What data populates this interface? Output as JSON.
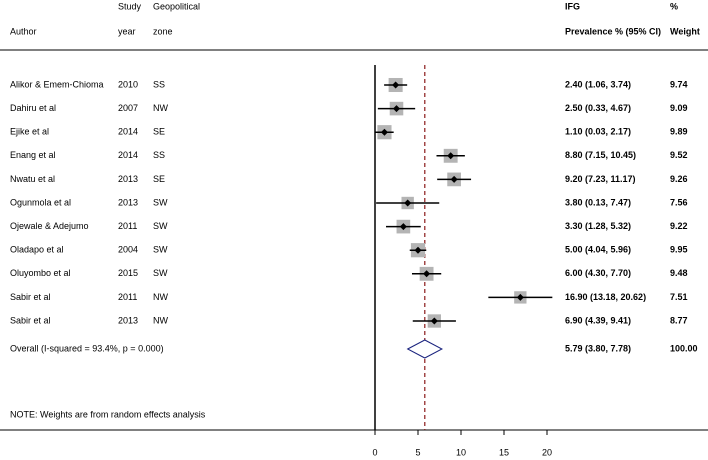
{
  "chart_data": {
    "type": "forest",
    "headers": {
      "author": "Author",
      "year": [
        "Study",
        "year"
      ],
      "zone": [
        "Geopolitical",
        "zone"
      ],
      "estimate": [
        "IFG",
        "Prevalence % (95% CI)"
      ],
      "weight": [
        "%",
        "Weight"
      ]
    },
    "authors": [
      "Alikor & Emem-Chioma",
      "Dahiru et al",
      "Ejike et al",
      "Enang et al",
      "Nwatu et al",
      "Ogunmola et al",
      "Ojewale & Adejumo",
      "Oladapo et al",
      "Oluyombo et al",
      "Sabir et al",
      "Sabir et al"
    ],
    "years": [
      2010,
      2007,
      2014,
      2014,
      2013,
      2013,
      2011,
      2004,
      2015,
      2011,
      2013
    ],
    "zones": [
      "SS",
      "NW",
      "SE",
      "SS",
      "SE",
      "SW",
      "SW",
      "SW",
      "SW",
      "NW",
      "NW"
    ],
    "values": [
      2.4,
      2.5,
      1.1,
      8.8,
      9.2,
      3.8,
      3.3,
      5.0,
      6.0,
      16.9,
      6.9
    ],
    "lower": [
      1.06,
      0.33,
      0.03,
      7.15,
      7.23,
      0.13,
      1.28,
      4.04,
      4.3,
      13.18,
      4.39
    ],
    "upper": [
      3.74,
      4.67,
      2.17,
      10.45,
      11.17,
      7.47,
      5.32,
      5.96,
      7.7,
      20.62,
      9.41
    ],
    "value_labels": [
      "2.40 (1.06, 3.74)",
      "2.50 (0.33, 4.67)",
      "1.10 (0.03, 2.17)",
      "8.80 (7.15, 10.45)",
      "9.20 (7.23, 11.17)",
      "3.80 (0.13, 7.47)",
      "3.30 (1.28, 5.32)",
      "5.00 (4.04, 5.96)",
      "6.00 (4.30, 7.70)",
      "16.90 (13.18, 20.62)",
      "6.90 (4.39, 9.41)"
    ],
    "weights": [
      9.74,
      9.09,
      9.89,
      9.52,
      9.26,
      7.56,
      9.22,
      9.95,
      9.48,
      7.51,
      8.77
    ],
    "overall": {
      "label": "Overall  (I-squared = 93.4%, p = 0.000)",
      "value": 5.79,
      "lower": 3.8,
      "upper": 7.78,
      "value_label": "5.79 (3.80, 7.78)",
      "weight": {
        "value": 100,
        "label": "100.00"
      }
    },
    "note": "NOTE: Weights are from random effects analysis",
    "xlim": [
      0,
      20
    ],
    "xticks": [
      0,
      5,
      10,
      15,
      20
    ],
    "box_color": "#b4b4b4",
    "ci_color": "#000000",
    "overall_color": "#1a237e",
    "reference_color": "#8b1a1a"
  }
}
